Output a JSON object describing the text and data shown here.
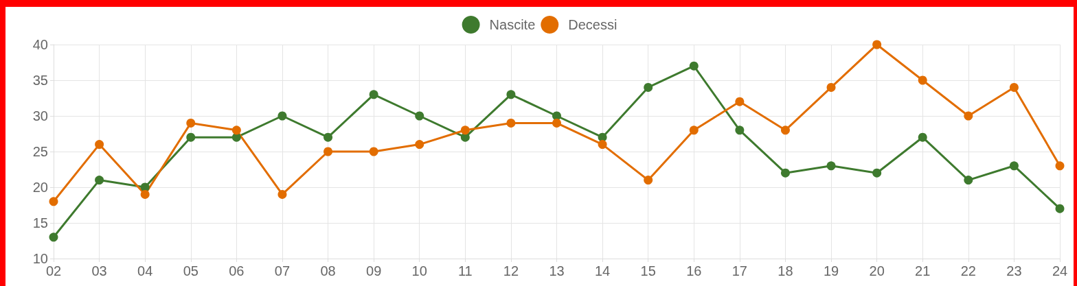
{
  "chart_data": {
    "type": "line",
    "categories": [
      "02",
      "03",
      "04",
      "05",
      "06",
      "07",
      "08",
      "09",
      "10",
      "11",
      "12",
      "13",
      "14",
      "15",
      "16",
      "17",
      "18",
      "19",
      "20",
      "21",
      "22",
      "23",
      "24"
    ],
    "series": [
      {
        "name": "Nascite",
        "color": "#3e7a2e",
        "values": [
          13,
          21,
          20,
          27,
          27,
          30,
          27,
          33,
          30,
          27,
          33,
          30,
          27,
          34,
          37,
          28,
          22,
          23,
          22,
          27,
          21,
          23,
          17
        ]
      },
      {
        "name": "Decessi",
        "color": "#e26d00",
        "values": [
          18,
          26,
          19,
          29,
          28,
          19,
          25,
          25,
          26,
          28,
          29,
          29,
          26,
          21,
          28,
          32,
          28,
          34,
          40,
          35,
          30,
          34,
          23
        ]
      }
    ],
    "ylim": [
      10,
      40
    ],
    "yticks": [
      10,
      15,
      20,
      25,
      30,
      35,
      40
    ],
    "grid": true,
    "legend": "top",
    "marker": "circle",
    "line_style": "solid"
  }
}
